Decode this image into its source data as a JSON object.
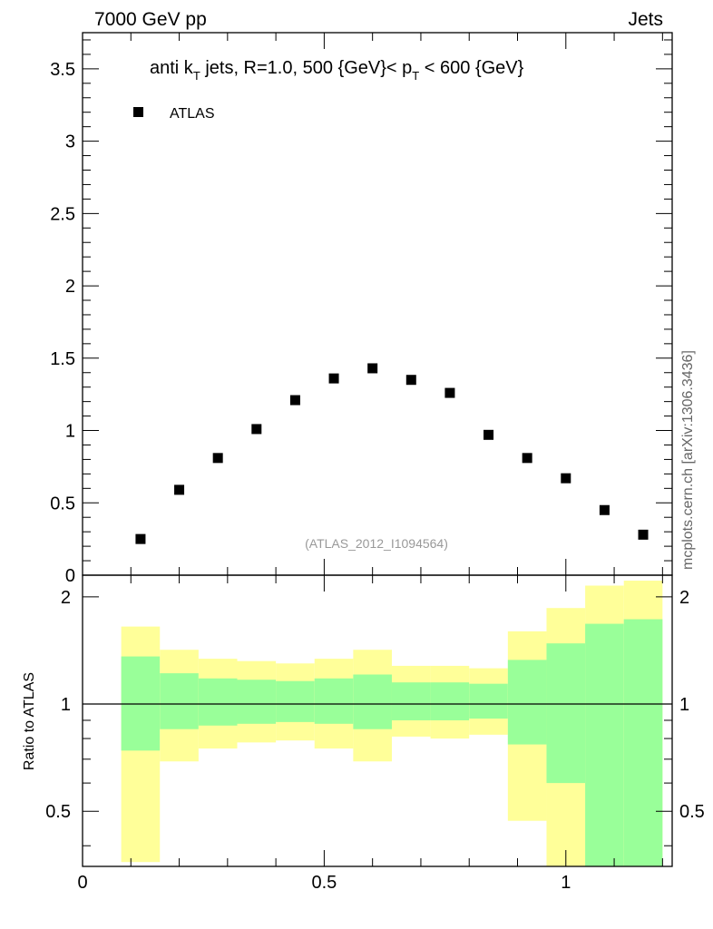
{
  "header": {
    "left": "7000 GeV pp",
    "right": "Jets",
    "side_note": "mcplots.cern.ch [arXiv:1306.3436]",
    "analysis_id": "(ATLAS_2012_I1094564)"
  },
  "colors": {
    "yellow_band": "#ffff99",
    "green_band": "#99ff99",
    "marker": "#000000"
  },
  "chart_data": [
    {
      "type": "scatter",
      "title": {
        "prefix": "anti k",
        "k_sub": "T",
        "mid": " jets, R=1.0,  500 {GeV}< p",
        "p_sub": "T",
        "suffix": " < 600 {GeV}"
      },
      "legend": {
        "label": "ATLAS",
        "placement": "top-left"
      },
      "xlim": [
        0,
        1.22
      ],
      "ylim": [
        0,
        3.75
      ],
      "y_ticks": [
        {
          "v": 0,
          "label": "0"
        },
        {
          "v": 0.5,
          "label": "0.5"
        },
        {
          "v": 1,
          "label": "1"
        },
        {
          "v": 1.5,
          "label": "1.5"
        },
        {
          "v": 2,
          "label": "2"
        },
        {
          "v": 2.5,
          "label": "2.5"
        },
        {
          "v": 3,
          "label": "3"
        },
        {
          "v": 3.5,
          "label": "3.5"
        }
      ],
      "series": [
        {
          "name": "ATLAS",
          "x": [
            0.12,
            0.2,
            0.28,
            0.36,
            0.44,
            0.52,
            0.6,
            0.68,
            0.76,
            0.84,
            0.92,
            1.0,
            1.08,
            1.16
          ],
          "y": [
            0.25,
            0.59,
            0.81,
            1.01,
            1.21,
            1.36,
            1.43,
            1.35,
            1.26,
            0.97,
            0.81,
            0.67,
            0.45,
            0.28
          ]
        }
      ]
    },
    {
      "type": "area",
      "ylabel": "Ratio to ATLAS",
      "xlim": [
        0,
        1.22
      ],
      "ylim": [
        0.35,
        2.3
      ],
      "y_scale": "log",
      "reference_line": 1,
      "y_ticks": [
        {
          "v": 0.5,
          "label": "0.5"
        },
        {
          "v": 1,
          "label": "1"
        },
        {
          "v": 2,
          "label": "2"
        }
      ],
      "x_ticks": [
        {
          "v": 0,
          "label": "0"
        },
        {
          "v": 0.5,
          "label": "0.5"
        },
        {
          "v": 1,
          "label": "1"
        }
      ],
      "bins": [
        {
          "lo": 0.08,
          "hi": 0.16,
          "y_lo": 0.36,
          "y_hi": 1.65,
          "g_lo": 0.74,
          "g_hi": 1.36
        },
        {
          "lo": 0.16,
          "hi": 0.24,
          "y_lo": 0.69,
          "y_hi": 1.42,
          "g_lo": 0.85,
          "g_hi": 1.22
        },
        {
          "lo": 0.24,
          "hi": 0.32,
          "y_lo": 0.75,
          "y_hi": 1.34,
          "g_lo": 0.87,
          "g_hi": 1.18
        },
        {
          "lo": 0.32,
          "hi": 0.4,
          "y_lo": 0.78,
          "y_hi": 1.32,
          "g_lo": 0.88,
          "g_hi": 1.17
        },
        {
          "lo": 0.4,
          "hi": 0.48,
          "y_lo": 0.79,
          "y_hi": 1.3,
          "g_lo": 0.89,
          "g_hi": 1.16
        },
        {
          "lo": 0.48,
          "hi": 0.56,
          "y_lo": 0.75,
          "y_hi": 1.34,
          "g_lo": 0.88,
          "g_hi": 1.18
        },
        {
          "lo": 0.56,
          "hi": 0.64,
          "y_lo": 0.69,
          "y_hi": 1.42,
          "g_lo": 0.85,
          "g_hi": 1.21
        },
        {
          "lo": 0.64,
          "hi": 0.72,
          "y_lo": 0.81,
          "y_hi": 1.28,
          "g_lo": 0.9,
          "g_hi": 1.15
        },
        {
          "lo": 0.72,
          "hi": 0.8,
          "y_lo": 0.8,
          "y_hi": 1.28,
          "g_lo": 0.9,
          "g_hi": 1.15
        },
        {
          "lo": 0.8,
          "hi": 0.88,
          "y_lo": 0.82,
          "y_hi": 1.26,
          "g_lo": 0.91,
          "g_hi": 1.14
        },
        {
          "lo": 0.88,
          "hi": 0.96,
          "y_lo": 0.47,
          "y_hi": 1.6,
          "g_lo": 0.77,
          "g_hi": 1.33
        },
        {
          "lo": 0.96,
          "hi": 1.04,
          "y_lo": 0.35,
          "y_hi": 1.86,
          "g_lo": 0.6,
          "g_hi": 1.48
        },
        {
          "lo": 1.04,
          "hi": 1.12,
          "y_lo": 0.35,
          "y_hi": 2.15,
          "g_lo": 0.35,
          "g_hi": 1.68
        },
        {
          "lo": 1.12,
          "hi": 1.2,
          "y_lo": 0.35,
          "y_hi": 2.22,
          "g_lo": 0.35,
          "g_hi": 1.73
        }
      ]
    }
  ]
}
